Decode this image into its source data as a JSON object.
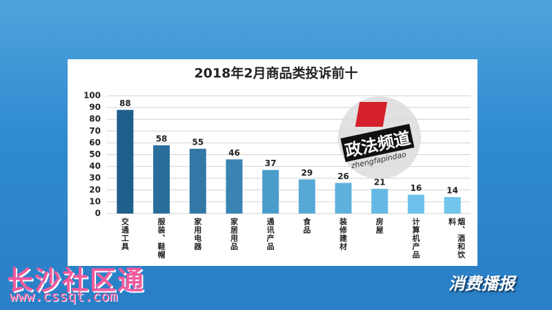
{
  "chart_data": {
    "type": "bar",
    "title": "2018年2月商品类投诉前十",
    "categories": [
      "交通工具",
      "服装、鞋帽",
      "家用电器",
      "家居用品",
      "通讯产品",
      "食品",
      "装修建材",
      "房屋",
      "计算机产品",
      "烟、酒和饮料"
    ],
    "values": [
      88,
      58,
      55,
      46,
      37,
      29,
      26,
      21,
      16,
      14
    ],
    "colors": [
      "#1f5f8b",
      "#2a6f9c",
      "#3178a6",
      "#3a84b3",
      "#4c9ccb",
      "#58a8d6",
      "#5eb0dd",
      "#66b9e4",
      "#6cc0e9",
      "#72c5ec"
    ],
    "ylim": [
      0,
      100
    ],
    "yticks": [
      0,
      10,
      20,
      30,
      40,
      50,
      60,
      70,
      80,
      90,
      100
    ],
    "grid": true
  },
  "overlays": {
    "logo": "政法频道",
    "logo_sub": "zhengfapindao",
    "watermark": "长沙社区通",
    "watermark_url": "www.cssqt.com",
    "program": "消费播报"
  }
}
